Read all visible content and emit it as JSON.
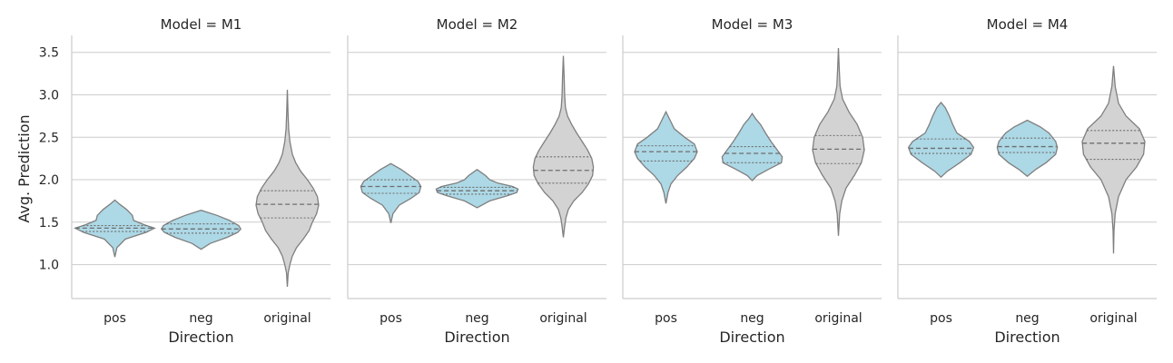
{
  "colors": {
    "pos": "#add8e6",
    "neg": "#add8e6",
    "original": "#d3d3d3",
    "outline": "#7f7f7f",
    "grid": "#cccccc"
  },
  "chart_data": {
    "type": "violin",
    "facet_label": "Model",
    "xlabel": "Direction",
    "ylabel": "Avg. Prediction",
    "categories": [
      "pos",
      "neg",
      "original"
    ],
    "ylim": [
      0.6,
      3.7
    ],
    "yticks": [
      "1.0",
      "1.5",
      "2.0",
      "2.5",
      "3.0",
      "3.5"
    ],
    "grid": true,
    "inner": "quartile",
    "panels": [
      {
        "title": "Model = M1",
        "violins": [
          {
            "category": "pos",
            "min": 1.09,
            "q1": 1.39,
            "median": 1.43,
            "q3": 1.46,
            "max": 1.76,
            "profile": [
              [
                1.09,
                0
              ],
              [
                1.2,
                0.05
              ],
              [
                1.3,
                0.25
              ],
              [
                1.38,
                0.75
              ],
              [
                1.43,
                0.95
              ],
              [
                1.47,
                0.7
              ],
              [
                1.52,
                0.45
              ],
              [
                1.58,
                0.42
              ],
              [
                1.65,
                0.28
              ],
              [
                1.71,
                0.12
              ],
              [
                1.76,
                0
              ]
            ]
          },
          {
            "category": "neg",
            "min": 1.18,
            "q1": 1.37,
            "median": 1.42,
            "q3": 1.48,
            "max": 1.64,
            "profile": [
              [
                1.18,
                0
              ],
              [
                1.25,
                0.22
              ],
              [
                1.32,
                0.62
              ],
              [
                1.38,
                0.88
              ],
              [
                1.42,
                0.95
              ],
              [
                1.46,
                0.9
              ],
              [
                1.52,
                0.68
              ],
              [
                1.58,
                0.38
              ],
              [
                1.64,
                0
              ]
            ]
          },
          {
            "category": "original",
            "min": 0.74,
            "q1": 1.55,
            "median": 1.71,
            "q3": 1.87,
            "max": 3.06,
            "profile": [
              [
                0.74,
                0
              ],
              [
                0.9,
                0.02
              ],
              [
                1.0,
                0.06
              ],
              [
                1.1,
                0.12
              ],
              [
                1.2,
                0.22
              ],
              [
                1.3,
                0.38
              ],
              [
                1.4,
                0.52
              ],
              [
                1.5,
                0.6
              ],
              [
                1.6,
                0.7
              ],
              [
                1.7,
                0.75
              ],
              [
                1.8,
                0.72
              ],
              [
                1.9,
                0.62
              ],
              [
                2.0,
                0.48
              ],
              [
                2.1,
                0.32
              ],
              [
                2.2,
                0.2
              ],
              [
                2.3,
                0.12
              ],
              [
                2.45,
                0.06
              ],
              [
                2.6,
                0.03
              ],
              [
                2.8,
                0.015
              ],
              [
                3.06,
                0
              ]
            ]
          }
        ]
      },
      {
        "title": "Model = M2",
        "violins": [
          {
            "category": "pos",
            "min": 1.49,
            "q1": 1.84,
            "median": 1.92,
            "q3": 2.0,
            "max": 2.19,
            "profile": [
              [
                1.49,
                0
              ],
              [
                1.6,
                0.05
              ],
              [
                1.7,
                0.2
              ],
              [
                1.78,
                0.48
              ],
              [
                1.85,
                0.68
              ],
              [
                1.92,
                0.72
              ],
              [
                1.98,
                0.65
              ],
              [
                2.05,
                0.45
              ],
              [
                2.12,
                0.25
              ],
              [
                2.19,
                0
              ]
            ]
          },
          {
            "category": "neg",
            "min": 1.67,
            "q1": 1.83,
            "median": 1.87,
            "q3": 1.91,
            "max": 2.12,
            "profile": [
              [
                1.67,
                0
              ],
              [
                1.75,
                0.3
              ],
              [
                1.81,
                0.72
              ],
              [
                1.85,
                0.95
              ],
              [
                1.89,
                0.98
              ],
              [
                1.92,
                0.85
              ],
              [
                1.96,
                0.5
              ],
              [
                2.0,
                0.3
              ],
              [
                2.05,
                0.2
              ],
              [
                2.12,
                0
              ]
            ]
          },
          {
            "category": "original",
            "min": 1.32,
            "q1": 1.96,
            "median": 2.11,
            "q3": 2.27,
            "max": 3.46,
            "profile": [
              [
                1.32,
                0
              ],
              [
                1.45,
                0.03
              ],
              [
                1.55,
                0.06
              ],
              [
                1.65,
                0.12
              ],
              [
                1.75,
                0.25
              ],
              [
                1.85,
                0.45
              ],
              [
                1.95,
                0.6
              ],
              [
                2.05,
                0.7
              ],
              [
                2.15,
                0.72
              ],
              [
                2.25,
                0.68
              ],
              [
                2.35,
                0.58
              ],
              [
                2.45,
                0.45
              ],
              [
                2.55,
                0.32
              ],
              [
                2.65,
                0.2
              ],
              [
                2.75,
                0.1
              ],
              [
                2.85,
                0.05
              ],
              [
                3.0,
                0.03
              ],
              [
                3.2,
                0.02
              ],
              [
                3.46,
                0
              ]
            ]
          }
        ]
      },
      {
        "title": "Model = M3",
        "violins": [
          {
            "category": "pos",
            "min": 1.72,
            "q1": 2.22,
            "median": 2.33,
            "q3": 2.4,
            "max": 2.8,
            "profile": [
              [
                1.72,
                0
              ],
              [
                1.85,
                0.05
              ],
              [
                1.95,
                0.12
              ],
              [
                2.05,
                0.28
              ],
              [
                2.15,
                0.5
              ],
              [
                2.25,
                0.68
              ],
              [
                2.33,
                0.75
              ],
              [
                2.42,
                0.68
              ],
              [
                2.5,
                0.45
              ],
              [
                2.6,
                0.2
              ],
              [
                2.7,
                0.1
              ],
              [
                2.8,
                0
              ]
            ]
          },
          {
            "category": "neg",
            "min": 1.99,
            "q1": 2.2,
            "median": 2.31,
            "q3": 2.39,
            "max": 2.78,
            "profile": [
              [
                1.99,
                0
              ],
              [
                2.05,
                0.12
              ],
              [
                2.12,
                0.38
              ],
              [
                2.2,
                0.7
              ],
              [
                2.27,
                0.72
              ],
              [
                2.35,
                0.6
              ],
              [
                2.45,
                0.45
              ],
              [
                2.55,
                0.32
              ],
              [
                2.65,
                0.2
              ],
              [
                2.72,
                0.08
              ],
              [
                2.78,
                0
              ]
            ]
          },
          {
            "category": "original",
            "min": 1.34,
            "q1": 2.19,
            "median": 2.36,
            "q3": 2.52,
            "max": 3.55,
            "profile": [
              [
                1.34,
                0
              ],
              [
                1.6,
                0.03
              ],
              [
                1.75,
                0.08
              ],
              [
                1.9,
                0.18
              ],
              [
                2.05,
                0.38
              ],
              [
                2.2,
                0.55
              ],
              [
                2.35,
                0.62
              ],
              [
                2.5,
                0.58
              ],
              [
                2.65,
                0.45
              ],
              [
                2.8,
                0.25
              ],
              [
                2.95,
                0.1
              ],
              [
                3.1,
                0.04
              ],
              [
                3.3,
                0.02
              ],
              [
                3.55,
                0
              ]
            ]
          }
        ]
      },
      {
        "title": "Model = M4",
        "violins": [
          {
            "category": "pos",
            "min": 2.03,
            "q1": 2.31,
            "median": 2.37,
            "q3": 2.48,
            "max": 2.91,
            "profile": [
              [
                2.03,
                0
              ],
              [
                2.1,
                0.15
              ],
              [
                2.2,
                0.45
              ],
              [
                2.3,
                0.72
              ],
              [
                2.38,
                0.78
              ],
              [
                2.45,
                0.68
              ],
              [
                2.55,
                0.38
              ],
              [
                2.65,
                0.28
              ],
              [
                2.75,
                0.2
              ],
              [
                2.85,
                0.1
              ],
              [
                2.91,
                0
              ]
            ]
          },
          {
            "category": "neg",
            "min": 2.04,
            "q1": 2.32,
            "median": 2.39,
            "q3": 2.49,
            "max": 2.7,
            "profile": [
              [
                2.04,
                0
              ],
              [
                2.12,
                0.2
              ],
              [
                2.2,
                0.45
              ],
              [
                2.3,
                0.68
              ],
              [
                2.38,
                0.72
              ],
              [
                2.45,
                0.68
              ],
              [
                2.55,
                0.52
              ],
              [
                2.62,
                0.32
              ],
              [
                2.7,
                0
              ]
            ]
          },
          {
            "category": "original",
            "min": 1.13,
            "q1": 2.24,
            "median": 2.43,
            "q3": 2.58,
            "max": 3.34,
            "profile": [
              [
                1.13,
                0
              ],
              [
                1.4,
                0.01
              ],
              [
                1.6,
                0.04
              ],
              [
                1.8,
                0.12
              ],
              [
                2.0,
                0.3
              ],
              [
                2.15,
                0.55
              ],
              [
                2.3,
                0.72
              ],
              [
                2.45,
                0.75
              ],
              [
                2.6,
                0.62
              ],
              [
                2.75,
                0.3
              ],
              [
                2.9,
                0.12
              ],
              [
                3.1,
                0.04
              ],
              [
                3.34,
                0
              ]
            ]
          }
        ]
      }
    ]
  }
}
